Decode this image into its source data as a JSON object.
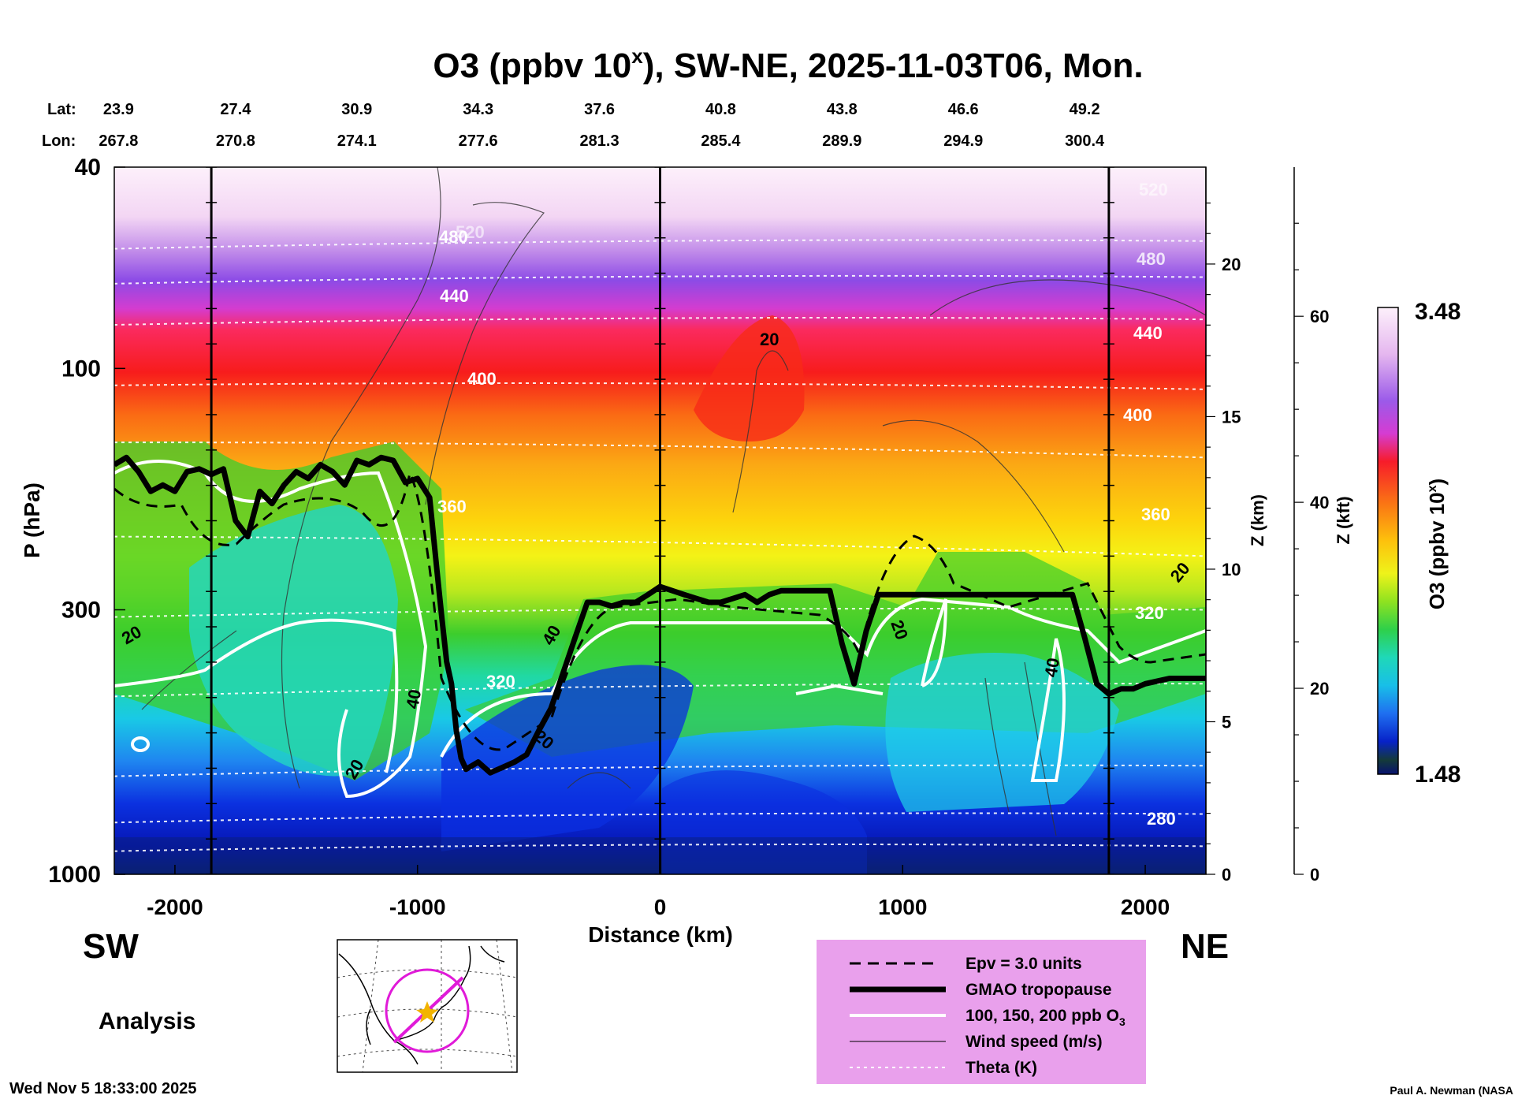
{
  "chart_data": {
    "type": "heatmap",
    "title_main": "O3 (ppbv 10",
    "title_sup": "x",
    "title_rest": "), SW-NE, 2025-11-03T06, Mon.",
    "xlabel": "Distance (km)",
    "ylabel_left": "P (hPa)",
    "ylabel_z_km": "Z (km)",
    "ylabel_z_kft": "Z (kft)",
    "colorbar_label_main": "O3 (ppbv 10",
    "colorbar_label_sup": "x",
    "colorbar_label_end": ")",
    "colorbar_range": [
      1.48,
      3.48
    ],
    "colorbar_max_label": "3.48",
    "colorbar_min_label": "1.48",
    "xlim": [
      -2250,
      2250
    ],
    "ylim_hpa": [
      1000,
      40
    ],
    "y_scale": "log",
    "x_ticks": [
      -2000,
      -1000,
      0,
      1000,
      2000
    ],
    "x_tick_labels": [
      "-2000",
      "-1000",
      "0",
      "1000",
      "2000"
    ],
    "p_ticks": [
      40,
      100,
      300,
      1000
    ],
    "p_tick_labels": [
      "40",
      "100",
      "300",
      "1000"
    ],
    "z_km_ticks": [
      0,
      5,
      10,
      15,
      20
    ],
    "z_km_tick_labels": [
      "0",
      "5",
      "10",
      "15",
      "20"
    ],
    "z_kft_ticks": [
      0,
      20,
      40,
      60
    ],
    "z_kft_tick_labels": [
      "0",
      "20",
      "40",
      "60"
    ],
    "lat_label": "Lat:",
    "lon_label": "Lon:",
    "lat_values": [
      "23.9",
      "27.4",
      "30.9",
      "34.3",
      "37.6",
      "40.8",
      "43.8",
      "46.6",
      "49.2"
    ],
    "lon_values": [
      "267.8",
      "270.8",
      "274.1",
      "277.6",
      "281.3",
      "285.4",
      "289.9",
      "294.9",
      "300.4"
    ],
    "latlon_distance_km": [
      -2200,
      -1750,
      -1250,
      -750,
      -250,
      250,
      750,
      1250,
      1750
    ],
    "vertical_marker_lines_km": [
      -1850,
      0,
      1850
    ],
    "tropopause": {
      "name": "GMAO tropopause",
      "x": [
        -2250,
        -2200,
        -2150,
        -2100,
        -2050,
        -2000,
        -1950,
        -1900,
        -1850,
        -1800,
        -1750,
        -1700,
        -1650,
        -1600,
        -1550,
        -1500,
        -1450,
        -1400,
        -1350,
        -1300,
        -1250,
        -1200,
        -1150,
        -1100,
        -1050,
        -1000,
        -950,
        -920,
        -900,
        -880,
        -860,
        -840,
        -820,
        -800,
        -750,
        -700,
        -650,
        -600,
        -550,
        -500,
        -450,
        -400,
        -350,
        -300,
        -250,
        -200,
        -150,
        -100,
        -50,
        0,
        50,
        100,
        150,
        200,
        250,
        300,
        350,
        400,
        450,
        500,
        550,
        600,
        650,
        700,
        750,
        800,
        850,
        900,
        950,
        1000,
        1050,
        1100,
        1150,
        1200,
        1300,
        1400,
        1500,
        1600,
        1700,
        1750,
        1800,
        1850,
        1900,
        1950,
        2000,
        2050,
        2100,
        2150,
        2200,
        2250
      ],
      "p": [
        155,
        150,
        160,
        175,
        170,
        175,
        160,
        158,
        162,
        158,
        200,
        215,
        175,
        185,
        170,
        160,
        165,
        155,
        160,
        170,
        152,
        155,
        150,
        152,
        168,
        165,
        180,
        250,
        310,
        380,
        420,
        520,
        590,
        620,
        600,
        630,
        615,
        600,
        580,
        520,
        470,
        400,
        340,
        290,
        290,
        295,
        290,
        290,
        280,
        270,
        275,
        280,
        285,
        290,
        290,
        285,
        280,
        290,
        280,
        275,
        275,
        275,
        275,
        275,
        350,
        420,
        330,
        280,
        280,
        280,
        280,
        280,
        280,
        280,
        280,
        280,
        280,
        280,
        280,
        340,
        420,
        440,
        430,
        430,
        420,
        415,
        410,
        410,
        410,
        410
      ]
    },
    "theta_labels": [
      "520",
      "480",
      "440",
      "400",
      "360",
      "320",
      "280"
    ],
    "ozone_contour_labels": [
      "20",
      "40"
    ],
    "direction_left": "SW",
    "direction_right": "NE",
    "analysis_label": "Analysis",
    "legend": [
      {
        "style": "dashed",
        "label": "Epv = 3.0 units"
      },
      {
        "style": "thick",
        "label": "GMAO tropopause"
      },
      {
        "style": "white",
        "label_main": "100, 150, 200 ppb O",
        "label_sub": "3"
      },
      {
        "style": "thin",
        "label": "Wind speed (m/s)"
      },
      {
        "style": "dotted",
        "label": "Theta (K)"
      }
    ],
    "timestamp": "Wed Nov  5 18:33:00 2025",
    "credit": "Paul A. Newman (NASA"
  }
}
